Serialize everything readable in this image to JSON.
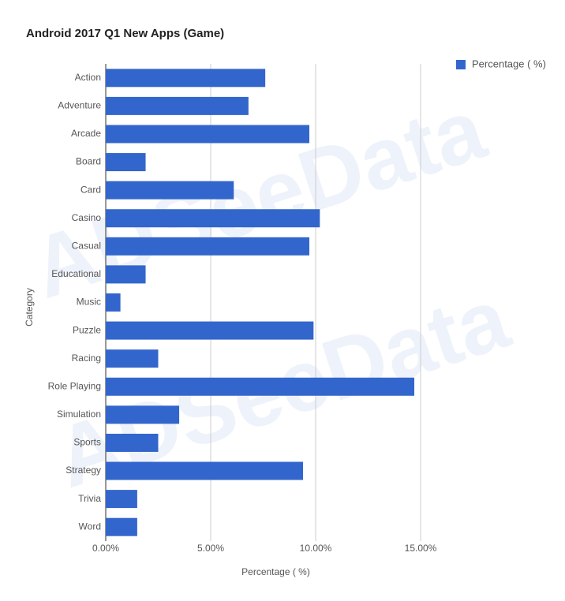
{
  "chart_data": {
    "type": "hbar",
    "title": "Android 2017 Q1 New Apps (Game)",
    "watermark": "ADSeeData",
    "x_label": "Percentage ( %)",
    "y_label": "Category",
    "categories": [
      "Action",
      "Adventure",
      "Arcade",
      "Board",
      "Card",
      "Casino",
      "Casual",
      "Educational",
      "Music",
      "Puzzle",
      "Racing",
      "Role Playing",
      "Simulation",
      "Sports",
      "Strategy",
      "Trivia",
      "Word"
    ],
    "series": [
      {
        "name": "Percentage ( %)",
        "color": "#3366cc",
        "values": [
          7.6,
          6.8,
          9.7,
          1.9,
          6.1,
          10.2,
          9.7,
          1.9,
          0.7,
          9.9,
          2.5,
          14.7,
          3.5,
          2.5,
          9.4,
          1.5,
          1.5
        ]
      }
    ],
    "xlim": [
      0,
      15
    ],
    "xticks": [
      {
        "value": 0,
        "label": "0.00%"
      },
      {
        "value": 5,
        "label": "5.00%"
      },
      {
        "value": 10,
        "label": "10.00%"
      },
      {
        "value": 15,
        "label": "15.00%"
      }
    ],
    "grid": true,
    "legend": "top-right"
  }
}
